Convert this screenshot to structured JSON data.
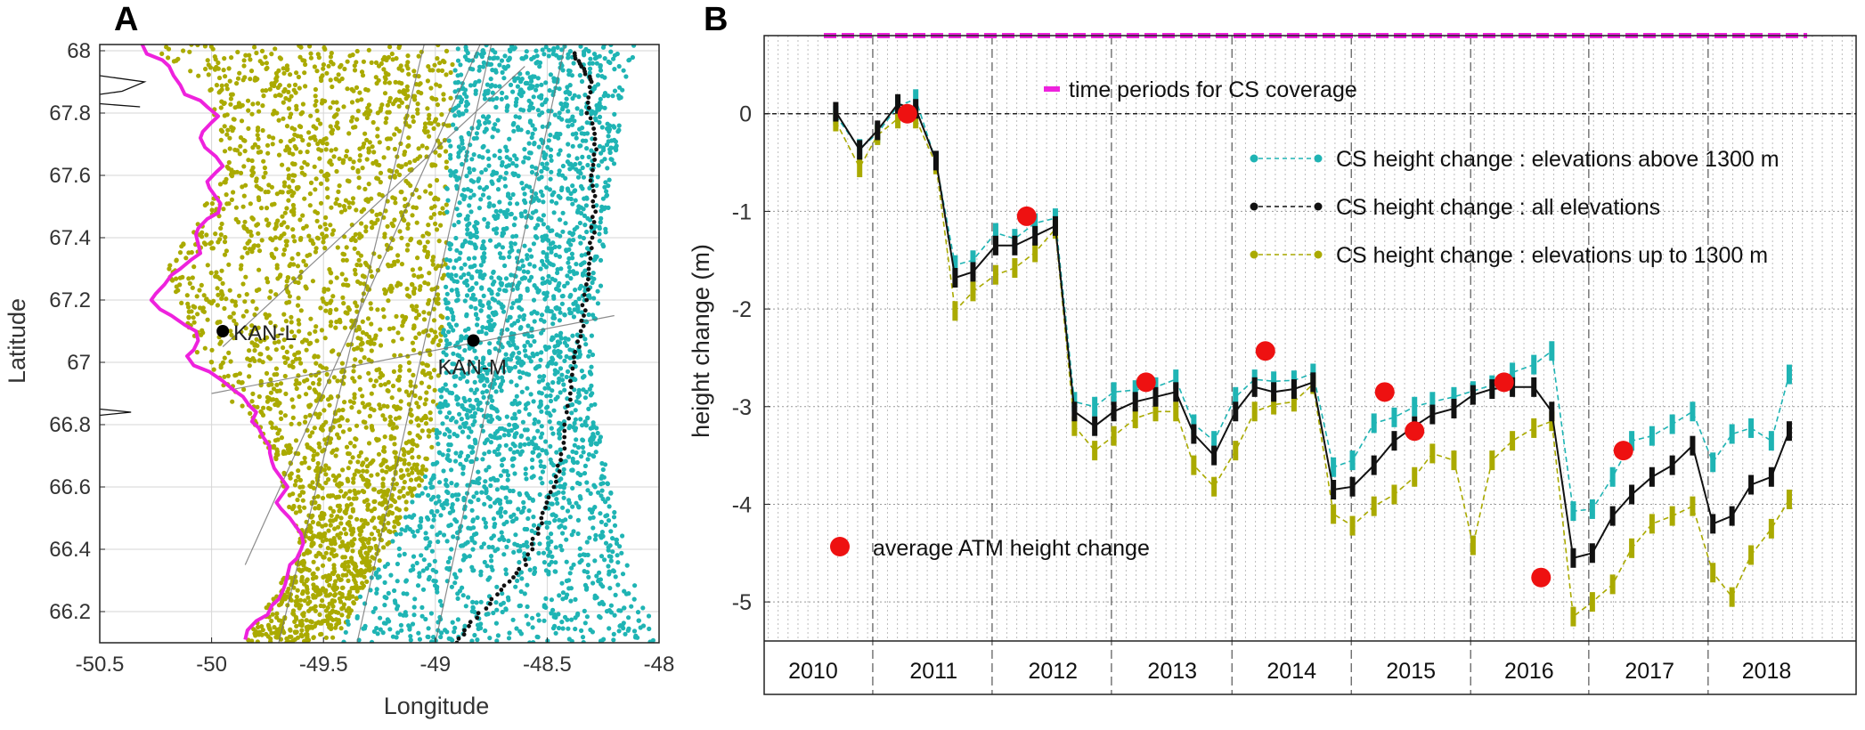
{
  "colors": {
    "olive": "#aaaa00",
    "teal": "#1fb4b4",
    "magenta": "#ee22dd",
    "black": "#111111",
    "red": "#ee1111",
    "grid": "#d6d6d6",
    "trackline": "#707070"
  },
  "chart_data": [
    {
      "panel": "A",
      "type": "scatter",
      "panel_label": "A",
      "xlabel": "Longitude",
      "ylabel": "Latitude",
      "xlim": [
        -50.5,
        -48
      ],
      "ylim": [
        66.1,
        68.02
      ],
      "xticks": [
        -50.5,
        -50,
        -49.5,
        -49,
        -48.5,
        -48
      ],
      "xtick_labels": [
        "-50.5",
        "-50",
        "-49.5",
        "-49",
        "-48.5",
        "-48"
      ],
      "yticks": [
        66.2,
        66.4,
        66.6,
        66.8,
        67,
        67.2,
        67.4,
        67.6,
        67.8,
        68
      ],
      "ytick_labels": [
        "66.2",
        "66.4",
        "66.6",
        "66.8",
        "67",
        "67.2",
        "67.4",
        "67.6",
        "67.8",
        "68"
      ],
      "grid": true,
      "series": [
        {
          "name": "ice margin",
          "style": "line",
          "color": "magenta",
          "lat": [
            68.02,
            67.99,
            67.97,
            67.95,
            67.92,
            67.89,
            67.86,
            67.84,
            67.82,
            67.79,
            67.77,
            67.74,
            67.72,
            67.69,
            67.66,
            67.63,
            67.61,
            67.58,
            67.56,
            67.53,
            67.51,
            67.48,
            67.46,
            67.43,
            67.41,
            67.38,
            67.35,
            67.33,
            67.3,
            67.28,
            67.25,
            67.22,
            67.2,
            67.17,
            67.15,
            67.12,
            67.1,
            67.07,
            67.04,
            67.02,
            66.99,
            66.97,
            66.94,
            66.91,
            66.89,
            66.86,
            66.84,
            66.81,
            66.79,
            66.76,
            66.73,
            66.71,
            66.68,
            66.66,
            66.63,
            66.6,
            66.58,
            66.55,
            66.53,
            66.5,
            66.48,
            66.45,
            66.42,
            66.4,
            66.37,
            66.35,
            66.32,
            66.29,
            66.27,
            66.24,
            66.22,
            66.19,
            66.17,
            66.14,
            66.11
          ],
          "lon": [
            -50.31,
            -50.29,
            -50.22,
            -50.19,
            -50.17,
            -50.14,
            -50.12,
            -50.05,
            -50.02,
            -49.97,
            -50.0,
            -50.04,
            -50.05,
            -50.03,
            -49.98,
            -49.95,
            -49.98,
            -50.02,
            -50.01,
            -49.98,
            -49.96,
            -49.97,
            -50.02,
            -50.06,
            -50.07,
            -50.06,
            -50.05,
            -50.09,
            -50.14,
            -50.18,
            -50.21,
            -50.25,
            -50.27,
            -50.23,
            -50.18,
            -50.12,
            -50.07,
            -50.06,
            -50.08,
            -50.11,
            -50.08,
            -50.01,
            -49.95,
            -49.9,
            -49.86,
            -49.83,
            -49.8,
            -49.82,
            -49.79,
            -49.77,
            -49.74,
            -49.74,
            -49.73,
            -49.72,
            -49.69,
            -49.66,
            -49.68,
            -49.71,
            -49.69,
            -49.65,
            -49.63,
            -49.6,
            -49.59,
            -49.6,
            -49.62,
            -49.65,
            -49.66,
            -49.67,
            -49.68,
            -49.7,
            -49.73,
            -49.75,
            -49.8,
            -49.84,
            -49.85
          ]
        },
        {
          "name": "CS elevations up to 1300 m",
          "style": "point cloud",
          "color": "olive",
          "lat": [
            66.1,
            66.4,
            66.7,
            67.0,
            67.3,
            67.6,
            67.9,
            68.02
          ],
          "lon_west": [
            -49.85,
            -49.6,
            -49.72,
            -50.05,
            -50.2,
            -49.95,
            -50.02,
            -50.3
          ],
          "lon_east": [
            -49.45,
            -49.22,
            -49.0,
            -48.98,
            -48.95,
            -48.95,
            -48.92,
            -48.9
          ]
        },
        {
          "name": "CS elevations above 1300 m",
          "style": "point cloud",
          "color": "teal",
          "lat": [
            66.1,
            66.4,
            66.7,
            67.0,
            67.3,
            67.6,
            67.9,
            68.02
          ],
          "lon_west": [
            -49.45,
            -49.22,
            -49.0,
            -48.98,
            -48.95,
            -48.95,
            -48.92,
            -48.9
          ],
          "lon_east": [
            -48.0,
            -48.15,
            -48.25,
            -48.3,
            -48.25,
            -48.2,
            -48.15,
            -48.1
          ]
        },
        {
          "name": "1300 m contour",
          "style": "dots",
          "color": "black",
          "lat": [
            66.1,
            66.18,
            66.27,
            66.35,
            66.45,
            66.55,
            66.65,
            66.76,
            66.88,
            67.0,
            67.1,
            67.2,
            67.3,
            67.4,
            67.5,
            67.6,
            67.7,
            67.8,
            67.9,
            67.95,
            68.0
          ],
          "lon": [
            -48.9,
            -48.82,
            -48.7,
            -48.6,
            -48.55,
            -48.5,
            -48.45,
            -48.42,
            -48.4,
            -48.38,
            -48.35,
            -48.33,
            -48.32,
            -48.3,
            -48.29,
            -48.3,
            -48.28,
            -48.32,
            -48.3,
            -48.35,
            -48.38
          ]
        }
      ],
      "stations": [
        {
          "label": "KAN-L",
          "lon": -49.95,
          "lat": 67.1
        },
        {
          "label": "KAN-M",
          "lon": -48.83,
          "lat": 67.07
        }
      ]
    },
    {
      "panel": "B",
      "type": "line",
      "panel_label": "B",
      "xlabel": "",
      "ylabel": "height change (m)",
      "ylim": [
        -5.4,
        0.8
      ],
      "xlim": [
        2009.55,
        2018.7
      ],
      "yticks": [
        0,
        -1,
        -2,
        -3,
        -4,
        -5
      ],
      "ytick_labels": [
        "0",
        "-1",
        "-2",
        "-3",
        "-4",
        "-5"
      ],
      "year_labels": [
        "2010",
        "2011",
        "2012",
        "2013",
        "2014",
        "2015",
        "2016",
        "2017",
        "2018"
      ],
      "year_label_centers": [
        2009.96,
        2010.97,
        2011.97,
        2012.97,
        2013.97,
        2014.97,
        2015.96,
        2016.97,
        2017.95
      ],
      "year_boundaries": [
        2010.46,
        2011.46,
        2012.46,
        2013.47,
        2014.47,
        2015.47,
        2016.46,
        2017.46
      ],
      "coverage": {
        "label": "time periods for CS coverage",
        "start": 2010.05,
        "end": 2018.29,
        "y": 0.8
      },
      "series": [
        {
          "name": "CS height change : elevations above 1300 m",
          "color": "teal",
          "x": [
            2010.15,
            2010.35,
            2010.5,
            2010.67,
            2010.82,
            2010.99,
            2011.15,
            2011.3,
            2011.49,
            2011.65,
            2011.82,
            2011.99,
            2012.15,
            2012.32,
            2012.48,
            2012.66,
            2012.83,
            2013.0,
            2013.15,
            2013.32,
            2013.5,
            2013.66,
            2013.82,
            2013.99,
            2014.15,
            2014.32,
            2014.48,
            2014.66,
            2014.83,
            2015.0,
            2015.15,
            2015.33,
            2015.49,
            2015.65,
            2015.82,
            2016.0,
            2016.15,
            2016.33,
            2016.49,
            2016.66,
            2016.82,
            2016.99,
            2017.16,
            2017.33,
            2017.5,
            2017.66,
            2017.82,
            2017.99,
            2018.14
          ],
          "y": [
            -0.02,
            -0.36,
            -0.2,
            0.08,
            0.15,
            -0.49,
            -1.55,
            -1.5,
            -1.22,
            -1.28,
            -1.12,
            -1.07,
            -2.95,
            -3.0,
            -2.85,
            -2.83,
            -2.8,
            -2.72,
            -3.18,
            -3.35,
            -2.9,
            -2.72,
            -2.74,
            -2.73,
            -2.66,
            -3.62,
            -3.55,
            -3.17,
            -3.11,
            -3.0,
            -2.95,
            -2.9,
            -2.84,
            -2.78,
            -2.65,
            -2.57,
            -2.43,
            -4.07,
            -4.05,
            -3.72,
            -3.35,
            -3.3,
            -3.18,
            -3.05,
            -3.57,
            -3.28,
            -3.22,
            -3.35,
            -2.67
          ]
        },
        {
          "name": "CS height change : all elevations",
          "color": "black",
          "x": [
            2010.15,
            2010.35,
            2010.5,
            2010.67,
            2010.82,
            2010.99,
            2011.15,
            2011.3,
            2011.49,
            2011.65,
            2011.82,
            2011.99,
            2012.15,
            2012.32,
            2012.48,
            2012.66,
            2012.83,
            2013.0,
            2013.15,
            2013.32,
            2013.5,
            2013.66,
            2013.82,
            2013.99,
            2014.15,
            2014.32,
            2014.48,
            2014.66,
            2014.83,
            2015.0,
            2015.15,
            2015.33,
            2015.49,
            2015.65,
            2015.82,
            2016.0,
            2016.15,
            2016.33,
            2016.49,
            2016.66,
            2016.82,
            2016.99,
            2017.16,
            2017.33,
            2017.5,
            2017.66,
            2017.82,
            2017.99,
            2018.14
          ],
          "y": [
            0.02,
            -0.37,
            -0.17,
            0.1,
            0.05,
            -0.48,
            -1.68,
            -1.62,
            -1.35,
            -1.35,
            -1.25,
            -1.15,
            -3.05,
            -3.2,
            -3.05,
            -2.95,
            -2.9,
            -2.85,
            -3.28,
            -3.5,
            -3.05,
            -2.8,
            -2.85,
            -2.82,
            -2.75,
            -3.85,
            -3.82,
            -3.6,
            -3.35,
            -3.2,
            -3.08,
            -3.02,
            -2.88,
            -2.82,
            -2.8,
            -2.8,
            -3.05,
            -4.55,
            -4.5,
            -4.12,
            -3.9,
            -3.72,
            -3.6,
            -3.4,
            -4.2,
            -4.12,
            -3.8,
            -3.72,
            -3.25
          ]
        },
        {
          "name": "CS height change : elevations up to 1300 m",
          "color": "olive",
          "x": [
            2010.15,
            2010.35,
            2010.5,
            2010.67,
            2010.82,
            2010.99,
            2011.15,
            2011.3,
            2011.49,
            2011.65,
            2011.82,
            2011.99,
            2012.15,
            2012.32,
            2012.48,
            2012.66,
            2012.83,
            2013.0,
            2013.15,
            2013.32,
            2013.5,
            2013.66,
            2013.82,
            2013.99,
            2014.15,
            2014.32,
            2014.48,
            2014.66,
            2014.83,
            2015.0,
            2015.15,
            2015.33,
            2015.49,
            2015.65,
            2015.82,
            2016.0,
            2016.15,
            2016.33,
            2016.49,
            2016.66,
            2016.82,
            2016.99,
            2017.16,
            2017.33,
            2017.5,
            2017.66,
            2017.82,
            2017.99,
            2018.14
          ],
          "y": [
            -0.08,
            -0.55,
            -0.22,
            -0.05,
            -0.05,
            -0.52,
            -2.02,
            -1.82,
            -1.65,
            -1.58,
            -1.42,
            -1.18,
            -3.2,
            -3.45,
            -3.3,
            -3.12,
            -3.05,
            -3.05,
            -3.6,
            -3.82,
            -3.45,
            -3.05,
            -2.98,
            -2.95,
            -2.77,
            -4.1,
            -4.22,
            -4.02,
            -3.9,
            -3.72,
            -3.48,
            -3.55,
            -4.42,
            -3.55,
            -3.35,
            -3.22,
            -3.15,
            -5.15,
            -5.0,
            -4.82,
            -4.45,
            -4.2,
            -4.12,
            -4.02,
            -4.7,
            -4.95,
            -4.52,
            -4.25,
            -3.95
          ]
        },
        {
          "name": "average ATM height change",
          "color": "red",
          "style": "markers",
          "x": [
            2010.75,
            2011.75,
            2012.75,
            2013.75,
            2014.75,
            2015.0,
            2015.75,
            2016.06,
            2016.75
          ],
          "y": [
            0.0,
            -1.05,
            -2.75,
            -2.43,
            -2.85,
            -3.25,
            -2.75,
            -4.75,
            -3.45
          ]
        }
      ],
      "legend": {
        "placement": "right",
        "entries": [
          "CS height change : elevations above 1300 m",
          "CS height change : all elevations",
          "CS height change : elevations up to 1300 m"
        ]
      }
    }
  ]
}
